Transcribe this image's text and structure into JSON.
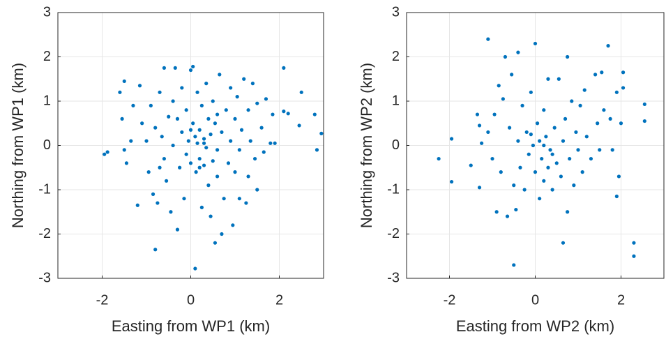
{
  "chart_data": [
    {
      "type": "scatter",
      "xlabel": "Easting from WP1 (km)",
      "ylabel": "Northing from WP1 (km)",
      "color": "#0072bd",
      "grid": true,
      "xlim": [
        -3,
        3
      ],
      "ylim": [
        -3,
        3
      ],
      "xticks": [
        -2,
        0,
        2
      ],
      "yticks": [
        -3,
        -2,
        -1,
        0,
        1,
        2,
        3
      ],
      "x": [
        -1.95,
        -1.88,
        -1.6,
        -1.5,
        -1.55,
        -1.5,
        -1.45,
        -1.3,
        -1.2,
        -1.15,
        -1.1,
        -1.0,
        -0.95,
        -0.9,
        -0.85,
        -0.8,
        -0.8,
        -0.75,
        -0.7,
        -0.65,
        -0.6,
        -0.6,
        -0.55,
        -0.5,
        -0.45,
        -0.4,
        -0.4,
        -0.35,
        -0.3,
        -0.25,
        -0.2,
        -0.2,
        -0.15,
        -0.1,
        -0.1,
        -0.05,
        0.0,
        0.0,
        0.05,
        0.05,
        0.1,
        0.1,
        0.12,
        0.15,
        0.15,
        0.2,
        0.2,
        0.25,
        0.25,
        0.3,
        0.3,
        0.35,
        0.35,
        0.4,
        0.4,
        0.45,
        0.45,
        0.5,
        0.5,
        0.55,
        0.55,
        0.6,
        0.6,
        0.65,
        0.7,
        0.7,
        0.75,
        0.8,
        0.85,
        0.9,
        0.9,
        0.95,
        1.0,
        1.0,
        1.05,
        1.1,
        1.1,
        1.15,
        1.2,
        1.25,
        1.3,
        1.3,
        1.35,
        1.4,
        1.45,
        1.5,
        1.5,
        1.6,
        1.65,
        1.7,
        1.8,
        1.9,
        1.85,
        2.1,
        2.1,
        2.2,
        2.45,
        2.5,
        2.8,
        2.85,
        2.95,
        -1.35,
        -0.7,
        0.3,
        0.0,
        0.2,
        -0.3,
        0.6
      ],
      "values": [
        -0.2,
        -0.15,
        1.2,
        1.45,
        0.6,
        -0.1,
        -0.4,
        0.9,
        -1.35,
        1.35,
        0.5,
        0.1,
        -0.6,
        0.9,
        -1.1,
        -2.35,
        0.4,
        -1.3,
        1.2,
        0.2,
        -0.3,
        1.75,
        -0.8,
        0.65,
        -1.5,
        1.0,
        0.0,
        1.75,
        -1.9,
        -0.5,
        0.3,
        1.3,
        -1.2,
        0.8,
        -0.2,
        0.1,
        1.7,
        -0.4,
        0.5,
        1.78,
        -2.78,
        0.2,
        -0.6,
        1.2,
        0.05,
        -0.3,
        0.35,
        -1.4,
        0.9,
        -0.45,
        0.15,
        -0.05,
        1.4,
        0.6,
        -0.9,
        -1.6,
        0.25,
        -0.35,
        1.0,
        -2.2,
        0.5,
        -0.1,
        -0.7,
        1.6,
        -2.0,
        0.3,
        -1.2,
        0.8,
        -0.4,
        1.3,
        0.1,
        -1.8,
        -0.6,
        0.6,
        1.1,
        -1.2,
        -0.1,
        0.35,
        1.5,
        -1.3,
        -0.7,
        0.8,
        0.1,
        1.4,
        -0.3,
        0.95,
        -1.0,
        0.4,
        -0.15,
        1.05,
        0.05,
        0.05,
        0.7,
        1.75,
        0.77,
        0.72,
        0.45,
        1.2,
        0.7,
        -0.1,
        0.27,
        0.1,
        -0.5,
        0.05,
        0.35,
        -0.5,
        0.6,
        0.7
      ]
    },
    {
      "type": "scatter",
      "xlabel": "Easting from WP2 (km)",
      "ylabel": "Northing from WP2 (km)",
      "color": "#0072bd",
      "grid": true,
      "xlim": [
        -3,
        3
      ],
      "ylim": [
        -3,
        3
      ],
      "xticks": [
        -2,
        0,
        2
      ],
      "yticks": [
        -3,
        -2,
        -1,
        0,
        1,
        2,
        3
      ],
      "x": [
        -2.25,
        -1.95,
        -1.95,
        -1.5,
        -1.35,
        -1.3,
        -1.3,
        -1.25,
        -1.1,
        -1.1,
        -1.0,
        -0.95,
        -0.9,
        -0.85,
        -0.8,
        -0.75,
        -0.7,
        -0.65,
        -0.6,
        -0.55,
        -0.5,
        -0.45,
        -0.4,
        -0.4,
        -0.35,
        -0.3,
        -0.25,
        -0.2,
        -0.15,
        -0.1,
        -0.05,
        0.0,
        0.0,
        0.05,
        0.1,
        0.1,
        0.15,
        0.2,
        0.2,
        0.25,
        0.3,
        0.3,
        0.35,
        0.4,
        0.45,
        0.5,
        0.55,
        0.6,
        0.65,
        0.65,
        0.7,
        0.75,
        0.75,
        0.8,
        0.85,
        0.9,
        0.95,
        1.0,
        1.05,
        1.1,
        1.15,
        1.2,
        1.3,
        1.4,
        1.45,
        1.5,
        1.55,
        1.6,
        1.7,
        1.75,
        1.8,
        1.9,
        1.9,
        1.95,
        2.0,
        2.05,
        2.05,
        2.3,
        2.3,
        2.55,
        2.55,
        -0.5,
        0.2,
        -0.1,
        0.4
      ],
      "values": [
        -0.3,
        -0.82,
        0.15,
        -0.45,
        0.7,
        -0.95,
        0.45,
        0.05,
        2.4,
        0.3,
        -0.3,
        0.7,
        -1.5,
        1.35,
        -0.6,
        1.05,
        2.0,
        -1.6,
        0.4,
        1.6,
        -0.9,
        -1.45,
        2.1,
        0.1,
        -0.5,
        0.9,
        -1.0,
        0.3,
        -0.2,
        1.2,
        0.0,
        2.3,
        -0.6,
        0.5,
        -1.2,
        0.1,
        -0.3,
        0.8,
        -0.8,
        0.2,
        -0.5,
        1.5,
        -0.1,
        -1.0,
        0.4,
        -0.4,
        1.5,
        -0.7,
        -2.2,
        0.1,
        0.6,
        2.0,
        -1.5,
        -0.3,
        1.0,
        -0.9,
        0.3,
        -0.1,
        0.9,
        -0.6,
        1.25,
        0.2,
        -0.3,
        1.6,
        0.5,
        -0.1,
        1.65,
        0.8,
        2.25,
        0.6,
        -0.1,
        -1.15,
        1.2,
        -0.7,
        0.5,
        1.65,
        1.3,
        -2.2,
        -2.5,
        0.93,
        0.55,
        -2.7,
        0.0,
        0.25,
        -0.2
      ]
    }
  ]
}
